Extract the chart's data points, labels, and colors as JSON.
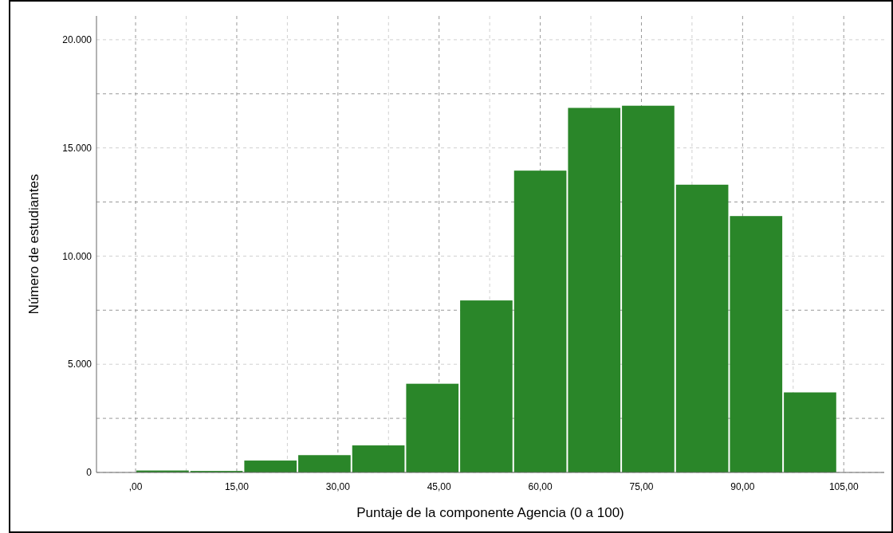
{
  "chart_data": {
    "type": "histogram",
    "xlabel": "Puntaje de la componente Agencia (0 a 100)",
    "ylabel": "Número de estudiantes",
    "bins": [
      0,
      8,
      16,
      24,
      32,
      40,
      48,
      56,
      64,
      72,
      80,
      88,
      96,
      104
    ],
    "values": [
      90,
      70,
      550,
      800,
      1250,
      4100,
      7950,
      13950,
      16850,
      16950,
      13300,
      11850,
      3700
    ],
    "color": "#2a8629",
    "xlim": [
      -5.8,
      111
    ],
    "xticks": [
      {
        "value": 0,
        "label": ",00"
      },
      {
        "value": 7.5,
        "label": null
      },
      {
        "value": 15,
        "label": "15,00"
      },
      {
        "value": 22.5,
        "label": null
      },
      {
        "value": 30,
        "label": "30,00"
      },
      {
        "value": 37.5,
        "label": null
      },
      {
        "value": 45,
        "label": "45,00"
      },
      {
        "value": 52.5,
        "label": null
      },
      {
        "value": 60,
        "label": "60,00"
      },
      {
        "value": 67.5,
        "label": null
      },
      {
        "value": 75,
        "label": "75,00"
      },
      {
        "value": 82.5,
        "label": null
      },
      {
        "value": 90,
        "label": "90,00"
      },
      {
        "value": 97.5,
        "label": null
      },
      {
        "value": 105,
        "label": "105,00"
      }
    ],
    "ylim": [
      0,
      21100
    ],
    "yticks": [
      0,
      {
        "value": 2500,
        "label": null
      },
      {
        "value": 5000,
        "label": "5.000"
      },
      {
        "value": 7500,
        "label": null
      },
      {
        "value": 10000,
        "label": "10.000"
      },
      {
        "value": 12500,
        "label": null
      },
      {
        "value": 15000,
        "label": "15.000"
      },
      {
        "value": 17500,
        "label": null
      },
      {
        "value": 20000,
        "label": "20.000"
      }
    ],
    "grid": true
  }
}
